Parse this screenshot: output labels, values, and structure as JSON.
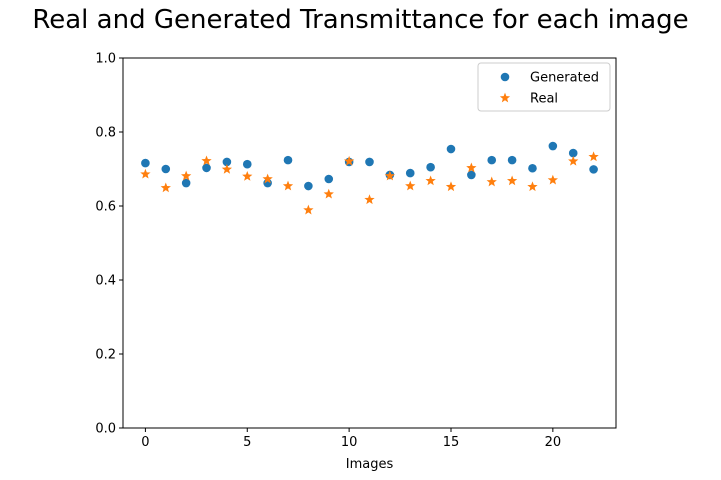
{
  "chart_data": {
    "type": "scatter",
    "title": "Real and Generated Transmittance for each image",
    "xlabel": "Images",
    "ylabel": "",
    "xlim": [
      -1.1,
      23.1
    ],
    "ylim": [
      0,
      1.0
    ],
    "xticks": [
      0,
      5,
      10,
      15,
      20
    ],
    "yticks": [
      0.0,
      0.2,
      0.4,
      0.6,
      0.8,
      1.0
    ],
    "ytick_labels": [
      "0.0",
      "0.2",
      "0.4",
      "0.6",
      "0.8",
      "1.0"
    ],
    "legend_position": "top-right",
    "grid": false,
    "x": [
      0,
      1,
      2,
      3,
      4,
      5,
      6,
      7,
      8,
      9,
      10,
      11,
      12,
      13,
      14,
      15,
      16,
      17,
      18,
      19,
      20,
      21,
      22
    ],
    "series": [
      {
        "name": "Generated",
        "marker": "circle",
        "color": "#1f77b4",
        "values": [
          0.716,
          0.7,
          0.662,
          0.703,
          0.719,
          0.713,
          0.662,
          0.724,
          0.654,
          0.673,
          0.719,
          0.719,
          0.684,
          0.689,
          0.705,
          0.754,
          0.684,
          0.724,
          0.724,
          0.702,
          0.762,
          0.743,
          0.699
        ]
      },
      {
        "name": "Real",
        "marker": "star",
        "color": "#ff7f0e",
        "values": [
          0.686,
          0.649,
          0.681,
          0.722,
          0.699,
          0.68,
          0.673,
          0.654,
          0.589,
          0.632,
          0.721,
          0.617,
          0.681,
          0.654,
          0.668,
          0.652,
          0.703,
          0.665,
          0.668,
          0.652,
          0.67,
          0.721,
          0.733
        ]
      }
    ]
  }
}
